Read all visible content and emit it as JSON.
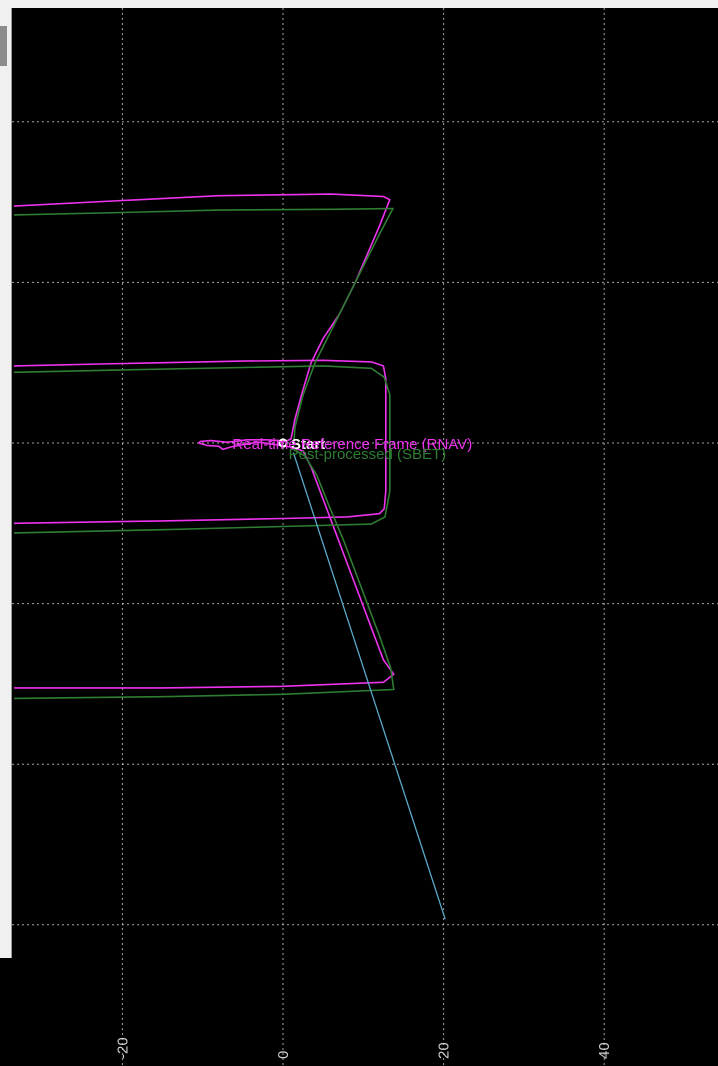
{
  "chart_data": {
    "type": "line",
    "grid": true,
    "x_ticks": [
      -20,
      0,
      20,
      40
    ],
    "xlim": [
      -33.5,
      55.2
    ],
    "ylim": [
      -59.3,
      72
    ],
    "start_label": "Start",
    "series": [
      {
        "name": "Real-time Reference Frame (RNAV)",
        "color": "#ee33ee",
        "points": [
          [
            -33.5,
            29.5
          ],
          [
            -20,
            30.2
          ],
          [
            -8,
            30.8
          ],
          [
            6,
            31.0
          ],
          [
            12.5,
            30.7
          ],
          [
            13.3,
            30.3
          ],
          [
            12,
            27
          ],
          [
            10.5,
            23.5
          ],
          [
            9,
            20
          ],
          [
            7,
            16
          ],
          [
            5,
            13
          ],
          [
            3.5,
            10
          ],
          [
            2.3,
            6
          ],
          [
            1.5,
            3
          ],
          [
            1,
            0.5
          ],
          [
            0.3,
            0.2
          ],
          [
            -0.5,
            0.3
          ],
          [
            -2,
            0.4
          ],
          [
            -4.5,
            0.4
          ],
          [
            -6,
            0.2
          ],
          [
            -7,
            0.1
          ],
          [
            -9,
            0.3
          ],
          [
            -10.3,
            0.2
          ],
          [
            -10.5,
            0.0
          ],
          [
            -9.5,
            -0.3
          ],
          [
            -8,
            -0.4
          ],
          [
            -7.5,
            -0.8
          ],
          [
            -6.5,
            -0.5
          ],
          [
            -5,
            -0.2
          ],
          [
            -3,
            0.1
          ],
          [
            -1,
            -0.2
          ],
          [
            1,
            -0.5
          ],
          [
            2.5,
            -1
          ],
          [
            3.5,
            -3
          ],
          [
            5,
            -7
          ],
          [
            6.5,
            -11
          ],
          [
            8,
            -15
          ],
          [
            9.5,
            -19
          ],
          [
            11,
            -23
          ],
          [
            12.5,
            -27
          ],
          [
            13.8,
            -28.8
          ],
          [
            12.5,
            -29.8
          ],
          [
            0,
            -30.3
          ],
          [
            -15,
            -30.5
          ],
          [
            -33.5,
            -30.5
          ]
        ]
      },
      {
        "name": "Real-time Reference Frame (RNAV)",
        "color": "#ee33ee",
        "points": [
          [
            -33.5,
            9.6
          ],
          [
            -20,
            9.9
          ],
          [
            -5,
            10.2
          ],
          [
            5,
            10.3
          ],
          [
            11,
            10.1
          ],
          [
            12.5,
            9.6
          ],
          [
            12.8,
            8
          ],
          [
            12.8,
            -6
          ],
          [
            12.6,
            -8.2
          ],
          [
            12,
            -8.8
          ],
          [
            8,
            -9.2
          ],
          [
            0,
            -9.4
          ],
          [
            -15,
            -9.7
          ],
          [
            -33.5,
            -10
          ]
        ]
      },
      {
        "name": "Post-processed (SBET)",
        "color": "#2e7d32",
        "points": [
          [
            -33.5,
            28.4
          ],
          [
            -20,
            28.7
          ],
          [
            -8,
            29.0
          ],
          [
            6,
            29.1
          ],
          [
            13.7,
            29.2
          ],
          [
            12,
            26
          ],
          [
            10,
            22
          ],
          [
            8,
            18
          ],
          [
            6,
            14
          ],
          [
            4,
            10
          ],
          [
            2.5,
            6
          ],
          [
            1.5,
            2
          ],
          [
            1.3,
            -0.8
          ],
          [
            2.7,
            -1.6
          ],
          [
            4.2,
            -4
          ],
          [
            5.8,
            -8
          ],
          [
            7.5,
            -12
          ],
          [
            9,
            -16
          ],
          [
            10.5,
            -20
          ],
          [
            12,
            -24
          ],
          [
            13.4,
            -28
          ],
          [
            13.8,
            -30.7
          ],
          [
            0,
            -31.3
          ],
          [
            -15,
            -31.6
          ],
          [
            -33.5,
            -31.8
          ]
        ]
      },
      {
        "name": "Post-processed (SBET)",
        "color": "#2e7d32",
        "points": [
          [
            -33.5,
            8.8
          ],
          [
            -20,
            9.1
          ],
          [
            -5,
            9.4
          ],
          [
            5,
            9.6
          ],
          [
            11,
            9.3
          ],
          [
            12.6,
            8.2
          ],
          [
            13.3,
            6
          ],
          [
            13.3,
            -6
          ],
          [
            12.7,
            -9.2
          ],
          [
            11,
            -10.1
          ],
          [
            0,
            -10.4
          ],
          [
            -15,
            -10.8
          ],
          [
            -33.5,
            -11.2
          ]
        ]
      },
      {
        "name": "",
        "color": "#5aa9c8",
        "points": [
          [
            1.3,
            -1.2
          ],
          [
            20.2,
            -59.3
          ]
        ]
      }
    ]
  },
  "legend": {
    "line1": "Real-time Reference Frame (RNAV)",
    "line2": "Post-processed (SBET)"
  }
}
